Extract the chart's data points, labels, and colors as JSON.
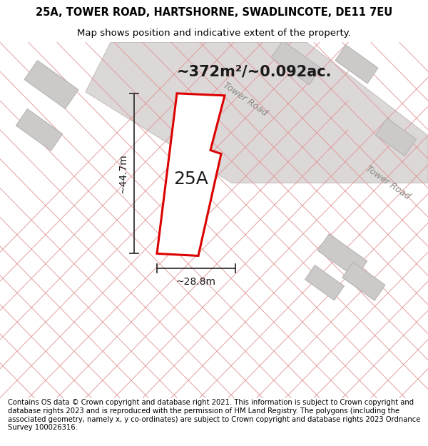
{
  "title_line1": "25A, TOWER ROAD, HARTSHORNE, SWADLINCOTE, DE11 7EU",
  "title_line2": "Map shows position and indicative extent of the property.",
  "footer_text": "Contains OS data © Crown copyright and database right 2021. This information is subject to Crown copyright and database rights 2023 and is reproduced with the permission of HM Land Registry. The polygons (including the associated geometry, namely x, y co-ordinates) are subject to Crown copyright and database rights 2023 Ordnance Survey 100026316.",
  "area_label": "~372m²/~0.092ac.",
  "label_25A": "25A",
  "dim_vertical": "~44.7m",
  "dim_horizontal": "~28.8m",
  "road_label_upper": "Tower Road",
  "road_label_lower": "Tower Road",
  "map_bg": "#f2eeee",
  "road_fill": "#ddd8d8",
  "road_edge": "#c8c0c0",
  "parcel_line_color": "#e09090",
  "building_fill": "#ccc9c9",
  "building_outline": "#b8b4b4",
  "plot_color": "#dd0000",
  "dim_color": "#333333",
  "title_fontsize": 10.5,
  "subtitle_fontsize": 9.5,
  "footer_fontsize": 7.2,
  "area_fontsize": 15,
  "label_fontsize": 18,
  "dim_fontsize": 10,
  "road_fontsize": 9
}
